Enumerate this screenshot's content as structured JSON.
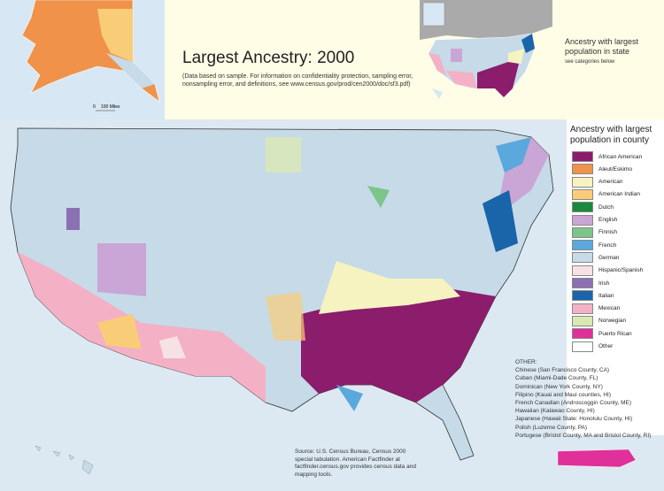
{
  "title": "Largest Ancestry: 2000",
  "note": "(Data based on sample. For information on confidentiality protection, sampling error, nonsampling error, and definitions, see www.census.gov/prod/cen2000/doc/sf3.pdf)",
  "state_inset": {
    "title": "Ancestry with largest population in state",
    "subtitle": "see categories below"
  },
  "legend": {
    "title": "Ancestry with largest population in county",
    "items": [
      {
        "label": "African American",
        "color": "#8c1c6c"
      },
      {
        "label": "Aleut/Eskimo",
        "color": "#f0924a"
      },
      {
        "label": "American",
        "color": "#f7f3c0"
      },
      {
        "label": "American Indian",
        "color": "#f9cd78"
      },
      {
        "label": "Dutch",
        "color": "#1a8a3c"
      },
      {
        "label": "English",
        "color": "#c9a6d6"
      },
      {
        "label": "Finnish",
        "color": "#7cc48a"
      },
      {
        "label": "French",
        "color": "#5aa8dc"
      },
      {
        "label": "German",
        "color": "#c6dae8"
      },
      {
        "label": "Hispanic/Spanish",
        "color": "#f6e2e4"
      },
      {
        "label": "Irish",
        "color": "#8c70b4"
      },
      {
        "label": "Italian",
        "color": "#1a64aa"
      },
      {
        "label": "Mexican",
        "color": "#f4b0c4"
      },
      {
        "label": "Norwegian",
        "color": "#dbe8b4"
      },
      {
        "label": "Puerto Rican",
        "color": "#e0309a"
      },
      {
        "label": "Other",
        "color": "#ffffff"
      }
    ]
  },
  "other": {
    "heading": "OTHER:",
    "items": [
      "Chinese (San Francisco County, CA)",
      "Cuban (Miami-Dade County, FL)",
      "Dominican (New York County, NY)",
      "Filipino (Kauai and Maui counties, HI)",
      "French Canadian (Androscoggin County, ME)",
      "Hawaiian (Kalawao County, HI)",
      "Japanese (Hawaii State: Honolulu County, HI)",
      "Polish (Luzerne County, PA)",
      "Portugese (Bristol County, MA and Bristol County, RI)"
    ]
  },
  "source": "Source: U.S. Census Bureau, Census 2000 special tabulation. American Factfinder at factfinder.census.gov provides census data and mapping tools.",
  "scale": {
    "zero": "0",
    "miles": "100 Miles"
  }
}
